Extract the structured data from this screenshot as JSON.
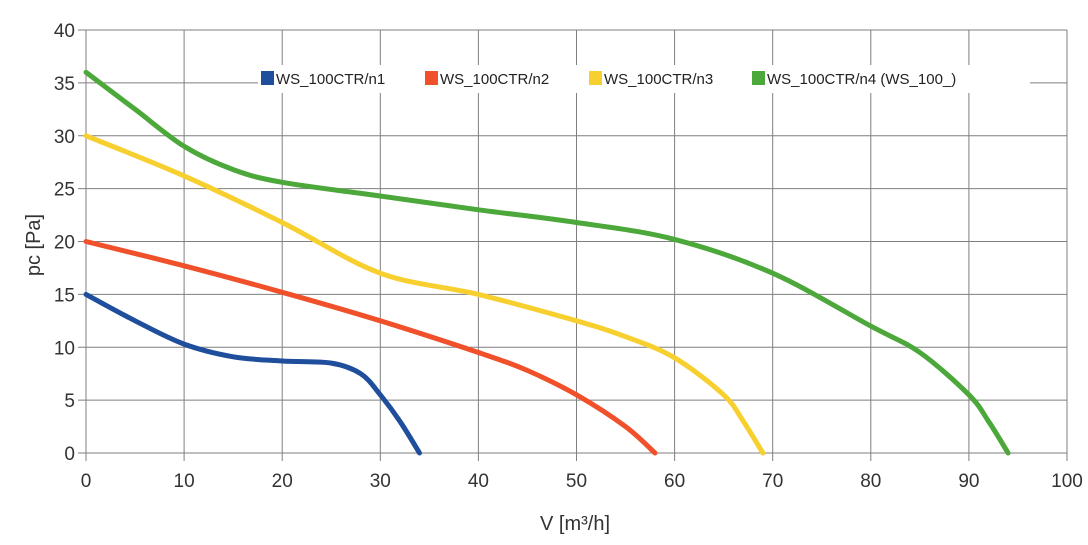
{
  "chart_data": {
    "type": "line",
    "title": "",
    "xlabel": "V [m³/h]",
    "ylabel": "pc [Pa]",
    "xlim": [
      0,
      100
    ],
    "ylim": [
      0,
      40
    ],
    "x_ticks": [
      "0",
      "10",
      "20",
      "30",
      "40",
      "50",
      "60",
      "70",
      "80",
      "90",
      "100"
    ],
    "y_ticks": [
      "0",
      "5",
      "10",
      "15",
      "20",
      "25",
      "30",
      "35",
      "40"
    ],
    "grid": true,
    "legend_position": "top-right",
    "series": [
      {
        "name": "WS_100CTR/n1",
        "color": "#1f4e9c",
        "x": [
          0,
          5,
          10,
          15,
          20,
          25,
          28,
          30,
          32,
          34
        ],
        "y": [
          15,
          12.5,
          10.3,
          9.1,
          8.7,
          8.5,
          7.5,
          5.5,
          3,
          0
        ]
      },
      {
        "name": "WS_100CTR/n2",
        "color": "#f0502a",
        "x": [
          0,
          10,
          20,
          30,
          40,
          45,
          50,
          55,
          58
        ],
        "y": [
          20,
          17.7,
          15.2,
          12.5,
          9.5,
          7.8,
          5.5,
          2.5,
          0
        ]
      },
      {
        "name": "WS_100CTR/n3",
        "color": "#f7d02f",
        "x": [
          0,
          10,
          20,
          30,
          40,
          50,
          55,
          60,
          65,
          67,
          69
        ],
        "y": [
          30,
          26.2,
          21.8,
          17,
          15,
          12.5,
          11,
          9,
          5.5,
          3,
          0
        ]
      },
      {
        "name": "WS_100CTR/n4 (WS_100_)",
        "color": "#4ca83a",
        "x": [
          0,
          5,
          10,
          15,
          20,
          30,
          40,
          50,
          60,
          70,
          80,
          85,
          90,
          92,
          94
        ],
        "y": [
          36,
          32.5,
          29,
          26.8,
          25.6,
          24.3,
          23,
          21.8,
          20.2,
          17,
          12,
          9.5,
          5.5,
          3,
          0
        ]
      }
    ]
  }
}
